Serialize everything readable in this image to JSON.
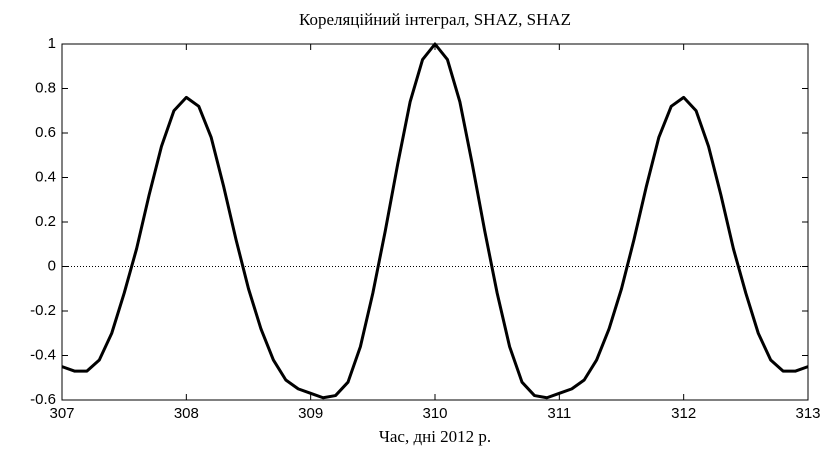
{
  "chart_data": {
    "type": "line",
    "title": "Кореляційний інтеграл, SHAZ, SHAZ",
    "x_label": "Час, дні 2012 р.",
    "x": [
      307.0,
      307.1,
      307.2,
      307.3,
      307.4,
      307.5,
      307.6,
      307.7,
      307.8,
      307.9,
      308.0,
      308.1,
      308.2,
      308.3,
      308.4,
      308.5,
      308.6,
      308.7,
      308.8,
      308.9,
      309.0,
      309.1,
      309.2,
      309.3,
      309.4,
      309.5,
      309.6,
      309.7,
      309.8,
      309.9,
      310.0,
      310.1,
      310.2,
      310.3,
      310.4,
      310.5,
      310.6,
      310.7,
      310.8,
      310.9,
      311.0,
      311.1,
      311.2,
      311.3,
      311.4,
      311.5,
      311.6,
      311.7,
      311.8,
      311.9,
      312.0,
      312.1,
      312.2,
      312.3,
      312.4,
      312.5,
      312.6,
      312.7,
      312.8,
      312.9,
      313.0
    ],
    "values": [
      -0.45,
      -0.47,
      -0.47,
      -0.42,
      -0.3,
      -0.12,
      0.08,
      0.32,
      0.54,
      0.7,
      0.76,
      0.72,
      0.58,
      0.36,
      0.12,
      -0.1,
      -0.28,
      -0.42,
      -0.51,
      -0.55,
      -0.57,
      -0.59,
      -0.58,
      -0.52,
      -0.36,
      -0.12,
      0.16,
      0.46,
      0.74,
      0.93,
      1.0,
      0.93,
      0.74,
      0.46,
      0.16,
      -0.12,
      -0.36,
      -0.52,
      -0.58,
      -0.59,
      -0.57,
      -0.55,
      -0.51,
      -0.42,
      -0.28,
      -0.1,
      0.12,
      0.36,
      0.58,
      0.72,
      0.76,
      0.7,
      0.54,
      0.32,
      0.08,
      -0.12,
      -0.3,
      -0.42,
      -0.47,
      -0.47,
      -0.45
    ],
    "color": "#000000",
    "xlim": [
      307,
      313
    ],
    "xticks": [
      307,
      308,
      309,
      310,
      311,
      312,
      313
    ],
    "ylim": [
      -0.6,
      1
    ],
    "yticks": [
      -0.6,
      -0.4,
      -0.2,
      0,
      0.2,
      0.4,
      0.6,
      0.8,
      1
    ],
    "hlines": [
      0
    ]
  }
}
